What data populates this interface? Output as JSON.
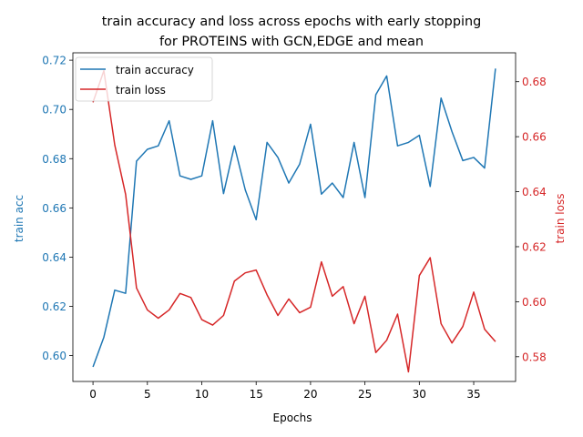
{
  "chart_data": {
    "type": "line",
    "title": "train accuracy and loss across epochs with early stopping\nfor PROTEINS with GCN,EDGE and mean",
    "xlabel": "Epochs",
    "ylabel_left": "train acc",
    "ylabel_right": "train loss",
    "xlim": [
      -1.85,
      38.85
    ],
    "ylim_left": [
      0.5895,
      0.723
    ],
    "ylim_right": [
      0.571,
      0.6905
    ],
    "x_ticks": [
      0,
      5,
      10,
      15,
      20,
      25,
      30,
      35
    ],
    "y_ticks_left": [
      0.6,
      0.62,
      0.64,
      0.66,
      0.68,
      0.7,
      0.72
    ],
    "y_ticks_right": [
      0.58,
      0.6,
      0.62,
      0.64,
      0.66,
      0.68
    ],
    "tick_labels_left": [
      "0.60",
      "0.62",
      "0.64",
      "0.66",
      "0.68",
      "0.70",
      "0.72"
    ],
    "tick_labels_right": [
      "0.58",
      "0.60",
      "0.62",
      "0.64",
      "0.66",
      "0.68"
    ],
    "x": [
      0,
      1,
      2,
      3,
      4,
      5,
      6,
      7,
      8,
      9,
      10,
      11,
      12,
      13,
      14,
      15,
      16,
      17,
      18,
      19,
      20,
      21,
      22,
      23,
      24,
      25,
      26,
      27,
      28,
      29,
      30,
      31,
      32,
      33,
      34,
      35,
      36,
      37
    ],
    "series": [
      {
        "name": "train accuracy",
        "axis": "left",
        "color": "#1f77b4",
        "values": [
          0.5954,
          0.6075,
          0.6266,
          0.6253,
          0.679,
          0.6838,
          0.6852,
          0.6954,
          0.673,
          0.6716,
          0.673,
          0.6954,
          0.6658,
          0.6852,
          0.6673,
          0.6552,
          0.6866,
          0.6805,
          0.6701,
          0.6778,
          0.694,
          0.6656,
          0.6701,
          0.6642,
          0.6866,
          0.6642,
          0.706,
          0.7136,
          0.6852,
          0.6866,
          0.6895,
          0.6687,
          0.7046,
          0.691,
          0.6792,
          0.6805,
          0.6762,
          0.7166
        ]
      },
      {
        "name": "train loss",
        "axis": "right",
        "color": "#d62728",
        "values": [
          0.6725,
          0.684,
          0.657,
          0.639,
          0.605,
          0.597,
          0.594,
          0.597,
          0.603,
          0.6015,
          0.5935,
          0.5915,
          0.595,
          0.6075,
          0.6105,
          0.6115,
          0.6025,
          0.595,
          0.601,
          0.596,
          0.598,
          0.6145,
          0.602,
          0.6055,
          0.592,
          0.602,
          0.5815,
          0.586,
          0.5955,
          0.5745,
          0.6095,
          0.616,
          0.592,
          0.585,
          0.591,
          0.6035,
          0.59,
          0.5855
        ]
      }
    ],
    "legend": {
      "location": "upper-left",
      "entries": [
        "train accuracy",
        "train loss"
      ]
    },
    "grid": false
  },
  "colors": {
    "acc": "#1f77b4",
    "loss": "#d62728",
    "axes": "#000000",
    "background": "#ffffff"
  }
}
